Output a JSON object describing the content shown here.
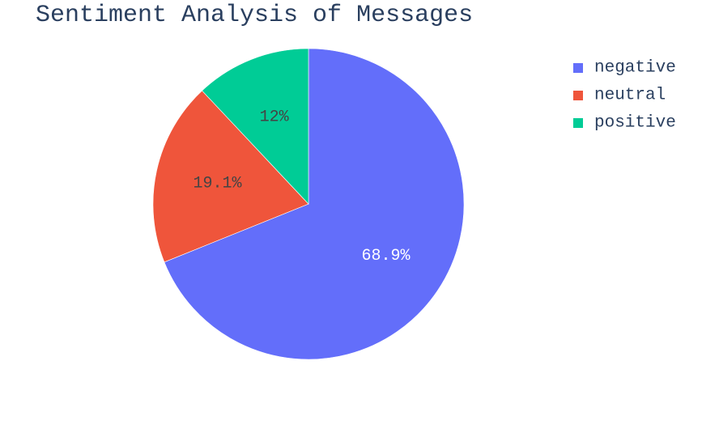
{
  "chart_data": {
    "type": "pie",
    "title": "Sentiment Analysis of Messages",
    "categories": [
      "negative",
      "neutral",
      "positive"
    ],
    "values": [
      68.9,
      19.1,
      12.0
    ],
    "labels": [
      "68.9%",
      "19.1%",
      "12%"
    ],
    "colors": [
      "#636efa",
      "#ef553b",
      "#00cc96"
    ],
    "label_colors": [
      "#ffffff",
      "#444444",
      "#444444"
    ],
    "legend": {
      "position": "top-right",
      "entries": [
        "negative",
        "neutral",
        "positive"
      ]
    },
    "direction": "clockwise",
    "start": "top"
  }
}
